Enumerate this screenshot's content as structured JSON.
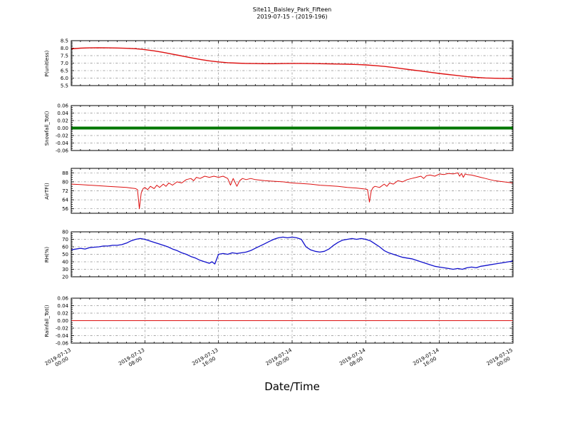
{
  "title": {
    "line1": "Site11_Baisley_Park_Fifteen",
    "line2": "2019-07-15 - (2019-196)"
  },
  "x_axis": {
    "label": "Date/Time",
    "xlim": [
      0,
      48
    ],
    "ticks": [
      {
        "h": 0,
        "date": "2019-07-13",
        "time": "00:00"
      },
      {
        "h": 8,
        "date": "2019-07-13",
        "time": "08:00"
      },
      {
        "h": 16,
        "date": "2019-07-13",
        "time": "16:00"
      },
      {
        "h": 24,
        "date": "2019-07-14",
        "time": "00:00"
      },
      {
        "h": 32,
        "date": "2019-07-14",
        "time": "08:00"
      },
      {
        "h": 40,
        "date": "2019-07-14",
        "time": "16:00"
      },
      {
        "h": 48,
        "date": "2019-07-15",
        "time": "00:00"
      }
    ]
  },
  "chart_data": [
    {
      "type": "line",
      "name": "P",
      "ylabel": "P(unitless)",
      "color": "#dd1111",
      "linewidth": 1.4,
      "ylim": [
        5.5,
        8.5
      ],
      "yticks": [
        5.5,
        6.0,
        6.5,
        7.0,
        7.5,
        8.0,
        8.5
      ],
      "ytick_labels": [
        "5.5",
        "6.0",
        "6.5",
        "7.0",
        "7.5",
        "8.0",
        "8.5"
      ],
      "x": [
        0,
        1,
        2,
        3,
        4,
        5,
        6,
        7,
        8,
        9,
        10,
        11,
        12,
        13,
        14,
        15,
        16,
        17,
        18,
        19,
        20,
        21,
        22,
        23,
        24,
        25,
        26,
        27,
        28,
        29,
        30,
        31,
        32,
        33,
        34,
        35,
        36,
        37,
        38,
        39,
        40,
        41,
        42,
        43,
        44,
        45,
        46,
        47,
        48
      ],
      "values": [
        7.95,
        8.0,
        8.02,
        8.03,
        8.02,
        8.01,
        7.99,
        7.96,
        7.9,
        7.82,
        7.72,
        7.6,
        7.48,
        7.36,
        7.25,
        7.15,
        7.08,
        7.03,
        7.0,
        6.98,
        6.97,
        6.96,
        6.96,
        6.97,
        6.98,
        6.98,
        6.97,
        6.96,
        6.95,
        6.94,
        6.93,
        6.91,
        6.88,
        6.84,
        6.78,
        6.71,
        6.63,
        6.55,
        6.47,
        6.39,
        6.31,
        6.24,
        6.17,
        6.1,
        6.05,
        6.01,
        5.99,
        5.98,
        5.98
      ]
    },
    {
      "type": "line",
      "name": "Snowfall",
      "ylabel": "Snowfall_Tot()",
      "color": "#007700",
      "linewidth": 4,
      "ylim": [
        -0.06,
        0.06
      ],
      "yticks": [
        -0.06,
        -0.04,
        -0.02,
        0,
        0.02,
        0.04,
        0.06
      ],
      "ytick_labels": [
        "-0.06",
        "-0.04",
        "-0.02",
        "0.00",
        "0.02",
        "0.04",
        "0.06"
      ],
      "x": [
        0,
        48
      ],
      "values": [
        0,
        0
      ]
    },
    {
      "type": "line",
      "name": "AirTF",
      "ylabel": "AirTF()",
      "color": "#dd1111",
      "linewidth": 1,
      "ylim": [
        52,
        92
      ],
      "yticks": [
        56,
        64,
        72,
        80,
        88
      ],
      "ytick_labels": [
        "56",
        "64",
        "72",
        "80",
        "88"
      ],
      "x": [
        0,
        1,
        2,
        3,
        4,
        5,
        6,
        6.5,
        7,
        7.2,
        7.4,
        7.6,
        7.8,
        8,
        8.3,
        8.6,
        9,
        9.3,
        9.6,
        10,
        10.3,
        10.6,
        11,
        11.5,
        12,
        12.5,
        13,
        13.3,
        13.6,
        14,
        14.5,
        15,
        15.5,
        16,
        16.5,
        17,
        17.3,
        17.6,
        18,
        18.3,
        18.6,
        19,
        19.5,
        20,
        20.5,
        21,
        22,
        23,
        24,
        25,
        26,
        27,
        28,
        29,
        30,
        31,
        31.5,
        32,
        32.2,
        32.4,
        32.6,
        32.8,
        33,
        33.5,
        34,
        34.3,
        34.6,
        35,
        35.5,
        36,
        36.5,
        37,
        37.5,
        38,
        38.3,
        38.6,
        39,
        39.5,
        40,
        40.5,
        41,
        41.5,
        42,
        42.2,
        42.4,
        42.6,
        42.8,
        43,
        43.5,
        44,
        44.5,
        45,
        45.5,
        46,
        46.5,
        47,
        47.5,
        48
      ],
      "values": [
        78,
        77.5,
        77,
        76.5,
        76,
        75.5,
        75,
        74.5,
        74,
        73,
        56,
        70,
        74,
        75,
        73,
        76,
        74,
        77,
        75,
        78,
        76,
        79,
        77,
        80,
        79,
        82,
        83,
        81,
        84,
        83,
        85,
        84,
        85,
        84,
        85,
        83,
        77,
        83,
        76,
        81,
        83,
        82,
        83,
        82,
        81.5,
        81,
        80.5,
        80,
        79,
        78.5,
        78,
        77,
        76.5,
        76,
        75,
        74.5,
        74,
        73.5,
        73,
        62,
        72,
        75,
        76,
        75,
        78,
        76,
        79,
        78,
        81,
        80,
        82,
        83,
        84,
        85,
        83,
        85.5,
        86,
        85,
        87,
        86.5,
        87.5,
        87,
        88,
        85,
        87.5,
        84,
        87,
        86.5,
        86,
        85,
        84,
        83,
        82,
        81,
        80.5,
        80,
        79.5,
        79
      ]
    },
    {
      "type": "line",
      "name": "RH",
      "ylabel": "RH(%)",
      "color": "#1111cc",
      "linewidth": 1.3,
      "ylim": [
        20,
        80
      ],
      "yticks": [
        20,
        30,
        40,
        50,
        60,
        70,
        80
      ],
      "ytick_labels": [
        "20",
        "30",
        "40",
        "50",
        "60",
        "70",
        "80"
      ],
      "x": [
        0,
        1,
        1.5,
        2,
        3,
        3.5,
        4,
        4.5,
        5,
        5.5,
        6,
        6.5,
        7,
        7.5,
        8,
        8.5,
        9,
        9.5,
        10,
        10.5,
        11,
        11.5,
        12,
        12.5,
        13,
        13.5,
        14,
        14.5,
        15,
        15.3,
        15.6,
        16,
        16.5,
        17,
        17.5,
        18,
        18.5,
        19,
        19.5,
        20,
        20.5,
        21,
        21.5,
        22,
        22.5,
        23,
        23.5,
        24,
        24.5,
        25,
        25.5,
        26,
        26.5,
        27,
        27.5,
        28,
        28.5,
        29,
        29.5,
        30,
        30.5,
        31,
        31.5,
        32,
        32.5,
        33,
        33.5,
        34,
        34.5,
        35,
        35.5,
        36,
        36.5,
        37,
        37.5,
        38,
        38.5,
        39,
        39.5,
        40,
        40.5,
        41,
        41.5,
        42,
        42.5,
        43,
        43.5,
        44,
        44.5,
        45,
        45.5,
        46,
        46.5,
        47,
        47.5,
        48
      ],
      "values": [
        56,
        58,
        57,
        59,
        60,
        61,
        61,
        62,
        62,
        63,
        65,
        68,
        70,
        71,
        70,
        68,
        66,
        64,
        62,
        60,
        57,
        55,
        52,
        50,
        47,
        45,
        42,
        40,
        38,
        40,
        37,
        50,
        51,
        50,
        52,
        51,
        52,
        53,
        55,
        58,
        61,
        64,
        67,
        70,
        72,
        73,
        72,
        73,
        72,
        70,
        60,
        56,
        54,
        53,
        54,
        57,
        62,
        66,
        69,
        70,
        71,
        70,
        71,
        70,
        68,
        64,
        60,
        55,
        52,
        50,
        48,
        46,
        45,
        44,
        42,
        40,
        38,
        36,
        34,
        33,
        32,
        31,
        30,
        31,
        30,
        32,
        33,
        32,
        34,
        35,
        36,
        37,
        38,
        39,
        40,
        41
      ]
    },
    {
      "type": "line",
      "name": "Rainfall",
      "ylabel": "Rainfall_Tot()",
      "color": "#dd1111",
      "linewidth": 1,
      "ylim": [
        -0.06,
        0.06
      ],
      "yticks": [
        -0.06,
        -0.04,
        -0.02,
        0,
        0.02,
        0.04,
        0.06
      ],
      "ytick_labels": [
        "-0.06",
        "-0.04",
        "-0.02",
        "0.00",
        "0.02",
        "0.04",
        "0.06"
      ],
      "x": [
        0,
        48
      ],
      "values": [
        0,
        0
      ]
    }
  ]
}
